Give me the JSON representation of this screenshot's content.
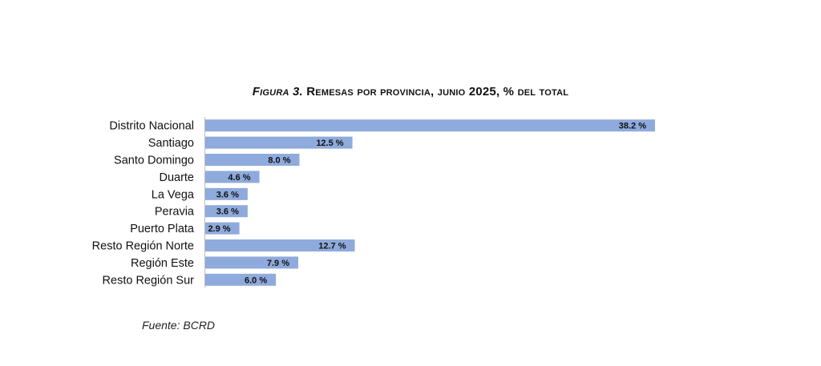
{
  "figure": {
    "label": "Figura 3.",
    "title": "Remesas por provincia, junio 2025, % del total"
  },
  "source": "Fuente: BCRD",
  "chart_data": {
    "type": "bar",
    "orientation": "horizontal",
    "title": "Figura 3. Remesas por provincia, junio 2025, % del total",
    "categories": [
      "Distrito Nacional",
      "Santiago",
      "Santo Domingo",
      "Duarte",
      "La Vega",
      "Peravia",
      "Puerto Plata",
      "Resto Región Norte",
      "Región Este",
      "Resto Región Sur"
    ],
    "values": [
      38.2,
      12.5,
      8.0,
      4.6,
      3.6,
      3.6,
      2.9,
      12.7,
      7.9,
      6.0
    ],
    "data_labels": [
      "38.2 %",
      "12.5 %",
      "8.0 %",
      "4.6 %",
      "3.6 %",
      "3.6 %",
      "2.9 %",
      "12.7 %",
      "7.9 %",
      "6.0 %"
    ],
    "xlim": [
      0,
      38.2
    ],
    "grid": false,
    "legend": "none",
    "bar_color": "#8faadc"
  }
}
